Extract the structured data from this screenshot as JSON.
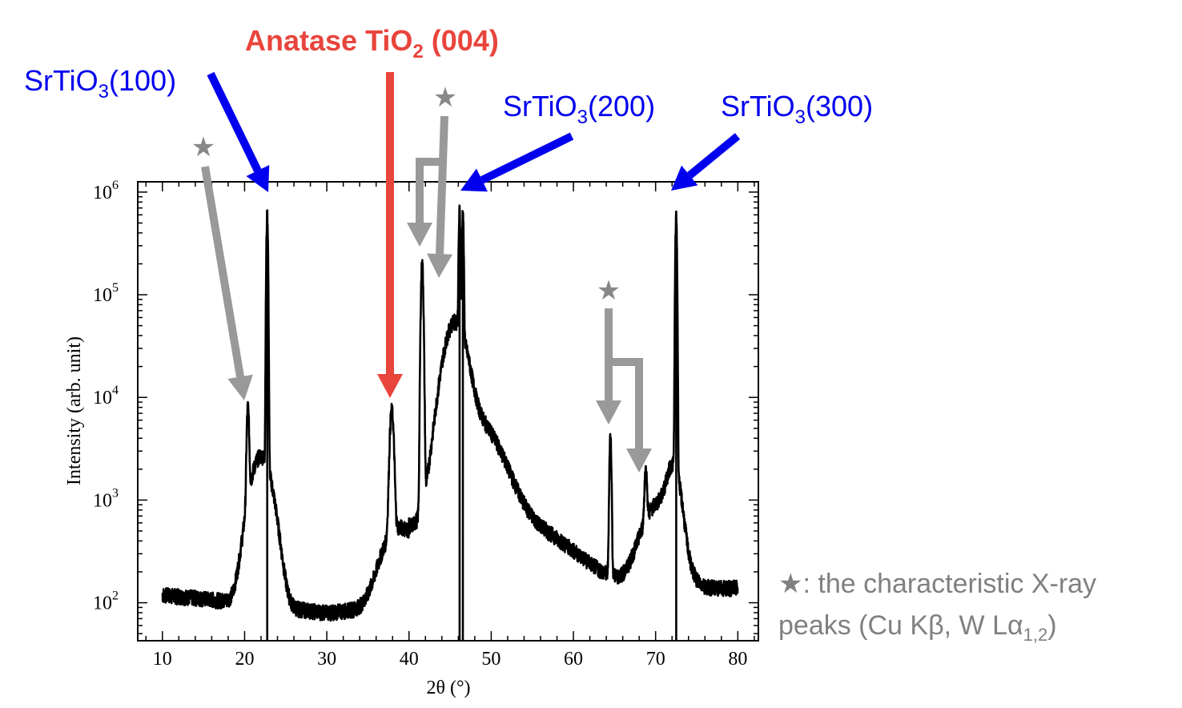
{
  "chart_data": {
    "type": "line",
    "xlabel": "2θ (°)",
    "ylabel": "Intensity (arb. unit)",
    "xlim": [
      7,
      82.5
    ],
    "ylim_log10": [
      1.63,
      6.1
    ],
    "log_y": true,
    "x_ticks": [
      10,
      20,
      30,
      40,
      50,
      60,
      70,
      80
    ],
    "y_ticks": [
      {
        "base": "10",
        "exp": "2",
        "value": 100
      },
      {
        "base": "10",
        "exp": "3",
        "value": 1000
      },
      {
        "base": "10",
        "exp": "4",
        "value": 10000
      },
      {
        "base": "10",
        "exp": "5",
        "value": 100000
      },
      {
        "base": "10",
        "exp": "6",
        "value": 1000000
      }
    ],
    "series": [
      {
        "color": "#000000",
        "peaks": [
          {
            "x": 20.4,
            "y": 7000,
            "w": 0.18
          },
          {
            "x": 22.75,
            "y": 600000,
            "w": 0.12
          },
          {
            "x": 37.9,
            "y": 7000,
            "w": 0.3
          },
          {
            "x": 41.6,
            "y": 200000,
            "w": 0.18
          },
          {
            "x": 46.15,
            "y": 600000,
            "w": 0.12
          },
          {
            "x": 46.55,
            "y": 600000,
            "w": 0.12
          },
          {
            "x": 64.5,
            "y": 4000,
            "w": 0.15
          },
          {
            "x": 68.8,
            "y": 1300,
            "w": 0.2
          },
          {
            "x": 72.5,
            "y": 550000,
            "w": 0.12
          }
        ]
      }
    ],
    "annotations": [
      {
        "id": "srtio3-100",
        "color": "#0000ee",
        "parts": [
          {
            "t": "SrTiO"
          },
          {
            "t": "3",
            "sub": true
          },
          {
            "t": "(100)"
          }
        ],
        "bold": false
      },
      {
        "id": "anatase",
        "color": "#e8453c",
        "parts": [
          {
            "t": "Anatase TiO"
          },
          {
            "t": "2",
            "sub": true
          },
          {
            "t": " (004)"
          }
        ],
        "bold": true
      },
      {
        "id": "srtio3-200",
        "color": "#0000ee",
        "parts": [
          {
            "t": "SrTiO"
          },
          {
            "t": "3",
            "sub": true
          },
          {
            "t": "(200)"
          }
        ],
        "bold": false
      },
      {
        "id": "srtio3-300",
        "color": "#0000ee",
        "parts": [
          {
            "t": "SrTiO"
          },
          {
            "t": "3",
            "sub": true
          },
          {
            "t": "(300)"
          }
        ],
        "bold": false
      }
    ],
    "star_symbol": "★",
    "star_color": "#888888",
    "arrow_gray": "#999999",
    "arrow_blue": "#0000ee",
    "arrow_red": "#e8453c",
    "legend_note": {
      "line1_star": "★",
      "line1_text": ": the characteristic X-ray",
      "line2_text": "peaks (Cu Kβ, W Lα",
      "line2_sub": "1,2",
      "line2_end": ")",
      "color": "#808080"
    }
  }
}
